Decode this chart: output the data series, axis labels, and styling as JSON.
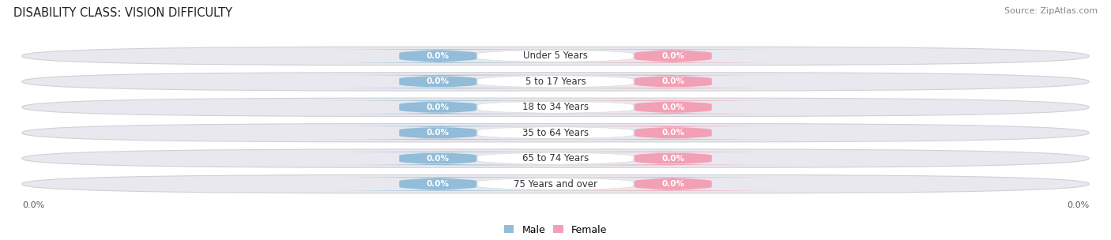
{
  "title": "DISABILITY CLASS: VISION DIFFICULTY",
  "source": "Source: ZipAtlas.com",
  "categories": [
    "Under 5 Years",
    "5 to 17 Years",
    "18 to 34 Years",
    "35 to 64 Years",
    "65 to 74 Years",
    "75 Years and over"
  ],
  "male_values": [
    0.0,
    0.0,
    0.0,
    0.0,
    0.0,
    0.0
  ],
  "female_values": [
    0.0,
    0.0,
    0.0,
    0.0,
    0.0,
    0.0
  ],
  "male_color": "#92bcd8",
  "female_color": "#f2a0b5",
  "male_label": "Male",
  "female_label": "Female",
  "row_fill_color": "#e8e8ee",
  "row_edge_color": "#d0d0d8",
  "center_box_fill": "#ffffff",
  "center_box_edge": "#dddddd",
  "title_fontsize": 10.5,
  "source_fontsize": 8,
  "category_fontsize": 8.5,
  "value_fontsize": 7.5,
  "axis_value": "0.0%"
}
